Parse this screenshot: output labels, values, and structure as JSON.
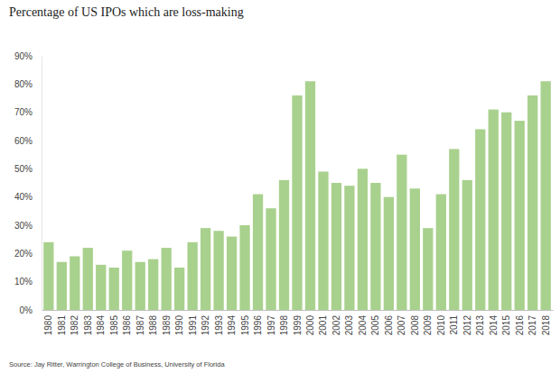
{
  "chart_data": {
    "type": "bar",
    "title": "Percentage of US IPOs which are loss-making",
    "source": "Source: Jay Ritter, Warrington College of Business, University of Florida",
    "categories": [
      "1980",
      "1981",
      "1982",
      "1983",
      "1984",
      "1985",
      "1986",
      "1987",
      "1988",
      "1989",
      "1990",
      "1991",
      "1992",
      "1993",
      "1994",
      "1995",
      "1996",
      "1997",
      "1998",
      "1999",
      "2000",
      "2001",
      "2002",
      "2003",
      "2004",
      "2005",
      "2006",
      "2007",
      "2008",
      "2009",
      "2010",
      "2011",
      "2012",
      "2013",
      "2014",
      "2015",
      "2016",
      "2017",
      "2018"
    ],
    "values": [
      24,
      17,
      19,
      22,
      16,
      15,
      21,
      17,
      18,
      22,
      15,
      24,
      29,
      28,
      26,
      30,
      41,
      36,
      46,
      76,
      81,
      49,
      45,
      44,
      50,
      45,
      40,
      55,
      43,
      29,
      41,
      57,
      46,
      64,
      71,
      70,
      67,
      76,
      81
    ],
    "color": "#a9d18e",
    "ylim": [
      0,
      90
    ],
    "yticks": [
      {
        "value": 0,
        "label": "0%"
      },
      {
        "value": 10,
        "label": "10%"
      },
      {
        "value": 20,
        "label": "20%"
      },
      {
        "value": 30,
        "label": "30%"
      },
      {
        "value": 40,
        "label": "40%"
      },
      {
        "value": 50,
        "label": "50%"
      },
      {
        "value": 60,
        "label": "60%"
      },
      {
        "value": 70,
        "label": "70%"
      },
      {
        "value": 80,
        "label": "80%"
      },
      {
        "value": 90,
        "label": "90%"
      }
    ],
    "grid": false
  }
}
